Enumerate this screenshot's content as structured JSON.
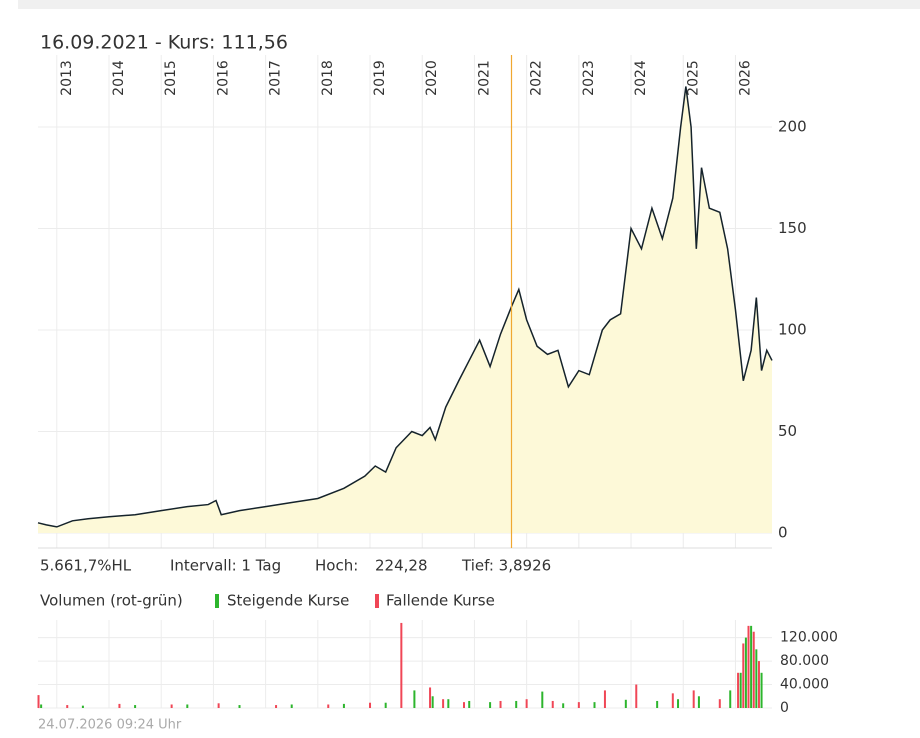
{
  "chart_data": [
    {
      "type": "area",
      "marker": {
        "x": 2021.71,
        "label": "16.09.2021  -  Kurs: 111,56",
        "color": "#f0a830"
      },
      "x": [
        2012.64,
        2012.8,
        2013.0,
        2013.3,
        2013.6,
        2014.0,
        2014.5,
        2015.0,
        2015.5,
        2015.9,
        2016.05,
        2016.15,
        2016.5,
        2017.0,
        2017.5,
        2018.0,
        2018.5,
        2018.9,
        2019.1,
        2019.3,
        2019.5,
        2019.8,
        2020.0,
        2020.15,
        2020.25,
        2020.45,
        2020.7,
        2020.9,
        2021.1,
        2021.3,
        2021.5,
        2021.71,
        2021.85,
        2022.0,
        2022.2,
        2022.4,
        2022.6,
        2022.8,
        2023.0,
        2023.2,
        2023.45,
        2023.6,
        2023.8,
        2024.0,
        2024.2,
        2024.4,
        2024.6,
        2024.8,
        2024.95,
        2025.05,
        2025.15,
        2025.25,
        2025.35,
        2025.5,
        2025.7,
        2025.85,
        2026.0,
        2026.15,
        2026.3,
        2026.4,
        2026.5,
        2026.6,
        2026.7
      ],
      "values": [
        5,
        4,
        3,
        6,
        7,
        8,
        9,
        11,
        13,
        14,
        16,
        9,
        11,
        13,
        15,
        17,
        22,
        28,
        33,
        30,
        42,
        50,
        48,
        52,
        46,
        62,
        75,
        85,
        95,
        82,
        98,
        111.56,
        120,
        105,
        92,
        88,
        90,
        72,
        80,
        78,
        100,
        105,
        108,
        150,
        140,
        160,
        145,
        165,
        200,
        220,
        200,
        140,
        180,
        160,
        158,
        140,
        110,
        75,
        90,
        116,
        80,
        90,
        85
      ],
      "color": "#15232b",
      "fill": "#fdf9d8",
      "xlim": [
        2012.64,
        2026.7
      ],
      "xticks": [
        2013,
        2014,
        2015,
        2016,
        2017,
        2018,
        2019,
        2020,
        2021,
        2022,
        2023,
        2024,
        2025,
        2026
      ],
      "ylim": [
        -7.4,
        235.5
      ],
      "yticks": [
        0,
        50,
        100,
        150,
        200
      ],
      "grid": true,
      "stats": [
        "5.661,7%HL",
        "Intervall: 1 Tag",
        "Hoch:",
        "224,28",
        "Tief: 3,8926"
      ]
    },
    {
      "type": "bar",
      "title": "Volumen (rot-grün)",
      "xlim": [
        2012.64,
        2026.7
      ],
      "xticks": [
        2013,
        2014,
        2015,
        2016,
        2017,
        2018,
        2019,
        2020,
        2021,
        2022,
        2023,
        2024,
        2025,
        2026
      ],
      "ylim": [
        0,
        150000
      ],
      "yticks": [
        0,
        {
          "value": 40000,
          "label": "40.000"
        },
        {
          "value": 80000,
          "label": "80.000"
        },
        {
          "value": 120000,
          "label": "120.000"
        }
      ],
      "grid": true,
      "series": [
        {
          "name": "Steigende Kurse",
          "color": "#2db52d",
          "x": [
            2012.7,
            2013.5,
            2014.5,
            2015.5,
            2016.5,
            2017.5,
            2018.5,
            2019.3,
            2019.85,
            2020.2,
            2020.5,
            2020.9,
            2021.3,
            2021.8,
            2022.3,
            2022.7,
            2023.3,
            2023.9,
            2024.5,
            2024.9,
            2025.3,
            2025.9,
            2026.1,
            2026.2,
            2026.3,
            2026.4,
            2026.5
          ],
          "values": [
            6000,
            4000,
            5000,
            6000,
            5000,
            6000,
            7000,
            9000,
            30000,
            20000,
            15000,
            12000,
            10000,
            12000,
            28000,
            8000,
            10000,
            14000,
            12000,
            15000,
            20000,
            30000,
            60000,
            120000,
            140000,
            100000,
            60000
          ]
        },
        {
          "name": "Fallende Kurse",
          "color": "#f04656",
          "x": [
            2012.65,
            2013.2,
            2014.2,
            2015.2,
            2016.1,
            2017.2,
            2018.2,
            2019.0,
            2019.6,
            2020.15,
            2020.4,
            2020.8,
            2021.5,
            2022.0,
            2022.5,
            2023.0,
            2023.5,
            2024.1,
            2024.8,
            2025.2,
            2025.7,
            2026.05,
            2026.15,
            2026.25,
            2026.35,
            2026.45
          ],
          "values": [
            22000,
            5000,
            7000,
            6000,
            8000,
            5000,
            6000,
            9000,
            145000,
            35000,
            15000,
            10000,
            12000,
            15000,
            12000,
            10000,
            30000,
            40000,
            25000,
            30000,
            15000,
            60000,
            110000,
            140000,
            130000,
            80000
          ]
        }
      ]
    }
  ],
  "footer": "24.07.2026 09:24 Uhr"
}
